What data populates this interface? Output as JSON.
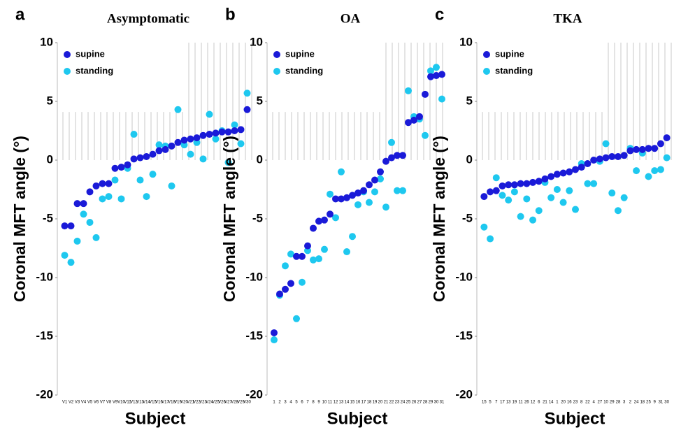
{
  "chart_data": [
    {
      "type": "scatter",
      "panel": "a",
      "title": "Asymptomatic",
      "ylabel": "Coronal MFT angle (°)",
      "xlabel": "Subject",
      "categories": [
        "V1",
        "V2",
        "V3",
        "V4",
        "V5",
        "V6",
        "V7",
        "V8",
        "V9",
        "V10",
        "V11",
        "V12",
        "V13",
        "V14",
        "V15",
        "V16",
        "V17",
        "V18",
        "V19",
        "V20",
        "V21",
        "V22",
        "V23",
        "V24",
        "V25",
        "V26",
        "V27",
        "V28",
        "V29",
        "V30"
      ],
      "series": [
        {
          "name": "supine",
          "color": "#1a1ad8",
          "values": [
            -5.6,
            -5.6,
            -3.7,
            -3.7,
            -2.7,
            -2.2,
            -2.0,
            -2.0,
            -0.7,
            -0.6,
            -0.4,
            0.1,
            0.2,
            0.3,
            0.5,
            0.8,
            0.9,
            1.2,
            1.5,
            1.7,
            1.8,
            1.9,
            2.1,
            2.2,
            2.3,
            2.4,
            2.4,
            2.5,
            2.6,
            4.3
          ]
        },
        {
          "name": "standing",
          "color": "#1ec8ef",
          "values": [
            -8.1,
            -8.7,
            -6.9,
            -4.6,
            -5.3,
            -6.6,
            -3.3,
            -3.1,
            -1.7,
            -3.3,
            -0.7,
            2.2,
            -1.7,
            -3.1,
            -1.2,
            1.3,
            1.2,
            -2.2,
            4.3,
            1.3,
            0.5,
            1.5,
            0.1,
            3.9,
            1.8,
            2.5,
            -0.2,
            3.0,
            1.4,
            5.7
          ]
        }
      ],
      "ylim": [
        -20,
        10
      ],
      "yticks": [
        -20,
        -15,
        -10,
        -5,
        0,
        5,
        10
      ],
      "legend": "upper left"
    },
    {
      "type": "scatter",
      "panel": "b",
      "title": "OA",
      "ylabel": "Coronal MFT angle (°)",
      "xlabel": "Subject",
      "categories": [
        "1",
        "2",
        "3",
        "4",
        "5",
        "6",
        "7",
        "8",
        "9",
        "10",
        "11",
        "12",
        "13",
        "14",
        "15",
        "16",
        "17",
        "18",
        "19",
        "20",
        "21",
        "22",
        "23",
        "24",
        "25",
        "26",
        "27",
        "28",
        "29",
        "30",
        "31"
      ],
      "series": [
        {
          "name": "supine",
          "color": "#1a1ad8",
          "values": [
            -14.7,
            -11.4,
            -11.0,
            -10.5,
            -8.2,
            -8.2,
            -7.3,
            -5.8,
            -5.2,
            -5.1,
            -4.6,
            -3.3,
            -3.3,
            -3.2,
            -3.0,
            -2.8,
            -2.6,
            -2.1,
            -1.7,
            -1.0,
            -0.1,
            0.2,
            0.4,
            0.4,
            3.2,
            3.4,
            3.7,
            5.6,
            7.1,
            7.2,
            7.3
          ]
        },
        {
          "name": "standing",
          "color": "#1ec8ef",
          "values": [
            -15.3,
            -11.5,
            -9.0,
            -8.0,
            -13.5,
            -10.4,
            -7.7,
            -8.5,
            -8.4,
            -7.6,
            -2.9,
            -4.9,
            -1.0,
            -7.8,
            -6.5,
            -3.8,
            -2.7,
            -3.6,
            -2.7,
            -1.6,
            -4.0,
            1.5,
            -2.6,
            -2.6,
            5.9,
            3.7,
            3.5,
            2.1,
            7.6,
            7.9,
            5.2
          ]
        }
      ],
      "ylim": [
        -20,
        10
      ],
      "yticks": [
        -20,
        -15,
        -10,
        -5,
        0,
        5,
        10
      ],
      "legend": "upper left"
    },
    {
      "type": "scatter",
      "panel": "c",
      "title": "TKA",
      "ylabel": "Coronal MFT angle (°)",
      "xlabel": "Subject",
      "categories": [
        "15",
        "5",
        "7",
        "17",
        "13",
        "19",
        "11",
        "26",
        "12",
        "6",
        "21",
        "14",
        "1",
        "20",
        "16",
        "23",
        "8",
        "22",
        "4",
        "27",
        "10",
        "29",
        "28",
        "3",
        "2",
        "24",
        "18",
        "25",
        "9",
        "31",
        "30"
      ],
      "series": [
        {
          "name": "supine",
          "color": "#1a1ad8",
          "values": [
            -3.1,
            -2.7,
            -2.6,
            -2.2,
            -2.1,
            -2.1,
            -2.0,
            -2.0,
            -1.9,
            -1.8,
            -1.6,
            -1.4,
            -1.2,
            -1.1,
            -1.0,
            -0.8,
            -0.6,
            -0.3,
            0.0,
            0.1,
            0.2,
            0.3,
            0.3,
            0.4,
            0.8,
            0.9,
            0.9,
            1.0,
            1.0,
            1.4,
            1.9
          ]
        },
        {
          "name": "standing",
          "color": "#1ec8ef",
          "values": [
            -5.7,
            -6.7,
            -1.5,
            -3.0,
            -3.4,
            -2.7,
            -4.8,
            -3.3,
            -5.1,
            -4.3,
            -1.9,
            -3.2,
            -2.5,
            -3.6,
            -2.6,
            -4.2,
            -0.3,
            -2.0,
            -2.0,
            -0.1,
            1.4,
            -2.8,
            -4.3,
            -3.2,
            1.0,
            -0.9,
            0.6,
            -1.4,
            -0.9,
            -0.8,
            0.2
          ]
        }
      ],
      "ylim": [
        -20,
        10
      ],
      "yticks": [
        -20,
        -15,
        -10,
        -5,
        0,
        5,
        10
      ],
      "legend": "upper left"
    }
  ]
}
